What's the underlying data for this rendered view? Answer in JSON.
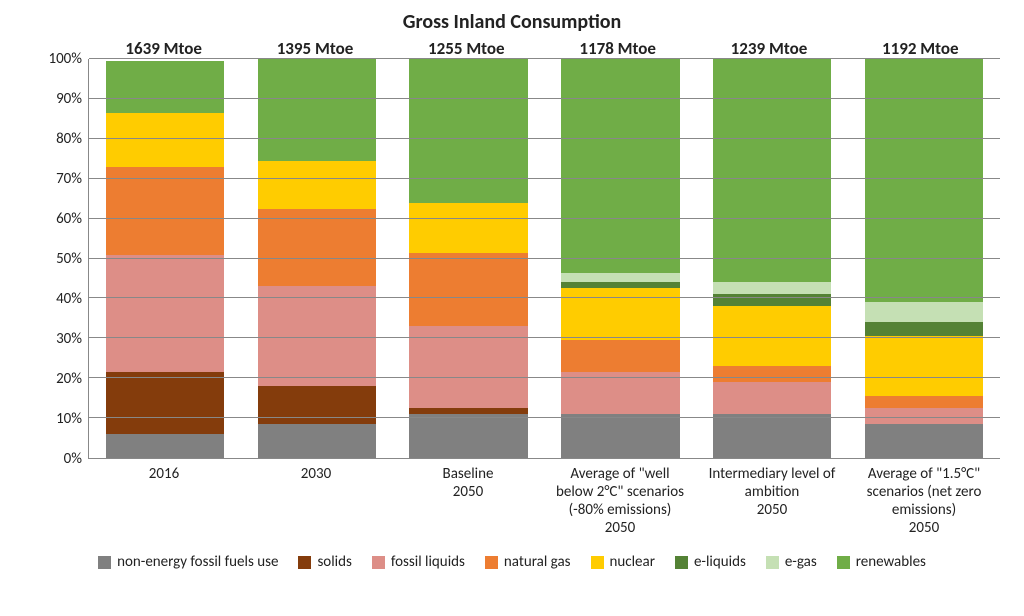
{
  "chart": {
    "type": "bar-stacked-100",
    "title": "Gross Inland Consumption",
    "title_fontsize": 20,
    "background_color": "#ffffff",
    "grid_color": "#888888",
    "axis_fontsize": 15,
    "label_fontsize": 15,
    "total_label_fontsize": 17,
    "bar_width_pct": 78,
    "ylim": [
      0,
      100
    ],
    "ytick_step": 10,
    "y_tick_suffix": "%",
    "categories": [
      {
        "label_lines": [
          "2016"
        ],
        "total": "1639 Mtoe"
      },
      {
        "label_lines": [
          "2030"
        ],
        "total": "1395 Mtoe"
      },
      {
        "label_lines": [
          "Baseline",
          "2050"
        ],
        "total": "1255 Mtoe"
      },
      {
        "label_lines": [
          "Average of \"well",
          "below 2°C\" scenarios",
          "(-80% emissions)",
          "2050"
        ],
        "total": "1178 Mtoe"
      },
      {
        "label_lines": [
          "Intermediary level of",
          "ambition",
          "2050"
        ],
        "total": "1239 Mtoe"
      },
      {
        "label_lines": [
          "Average of \"1.5°C\"",
          "scenarios (net zero",
          "emissions)",
          "2050"
        ],
        "total": "1192 Mtoe"
      }
    ],
    "series": [
      {
        "key": "non_energy",
        "name": "non-energy fossil fuels use",
        "color": "#808080"
      },
      {
        "key": "solids",
        "name": "solids",
        "color": "#843c0c"
      },
      {
        "key": "fossil_liq",
        "name": "fossil liquids",
        "color": "#dd8e87"
      },
      {
        "key": "natural_gas",
        "name": "natural gas",
        "color": "#ed7d31"
      },
      {
        "key": "nuclear",
        "name": "nuclear",
        "color": "#ffcc00"
      },
      {
        "key": "e_liquids",
        "name": "e-liquids",
        "color": "#548235"
      },
      {
        "key": "e_gas",
        "name": "e-gas",
        "color": "#c5e0b4"
      },
      {
        "key": "renewables",
        "name": "renewables",
        "color": "#70ad47"
      }
    ],
    "values": {
      "non_energy": [
        6,
        8.5,
        11,
        11,
        11,
        8.5
      ],
      "solids": [
        15.5,
        9.5,
        1.5,
        0,
        0,
        0
      ],
      "fossil_liq": [
        29.5,
        25,
        20.5,
        10.5,
        8,
        4
      ],
      "natural_gas": [
        22,
        19.5,
        18.5,
        8,
        4,
        3
      ],
      "nuclear": [
        13.5,
        12,
        12.5,
        13,
        15,
        15
      ],
      "e_liquids": [
        0,
        0,
        0,
        1.5,
        3,
        3.5
      ],
      "e_gas": [
        0,
        0,
        0,
        2.5,
        3,
        5
      ],
      "renewables": [
        13,
        25.5,
        36,
        53.5,
        56,
        61
      ]
    }
  }
}
